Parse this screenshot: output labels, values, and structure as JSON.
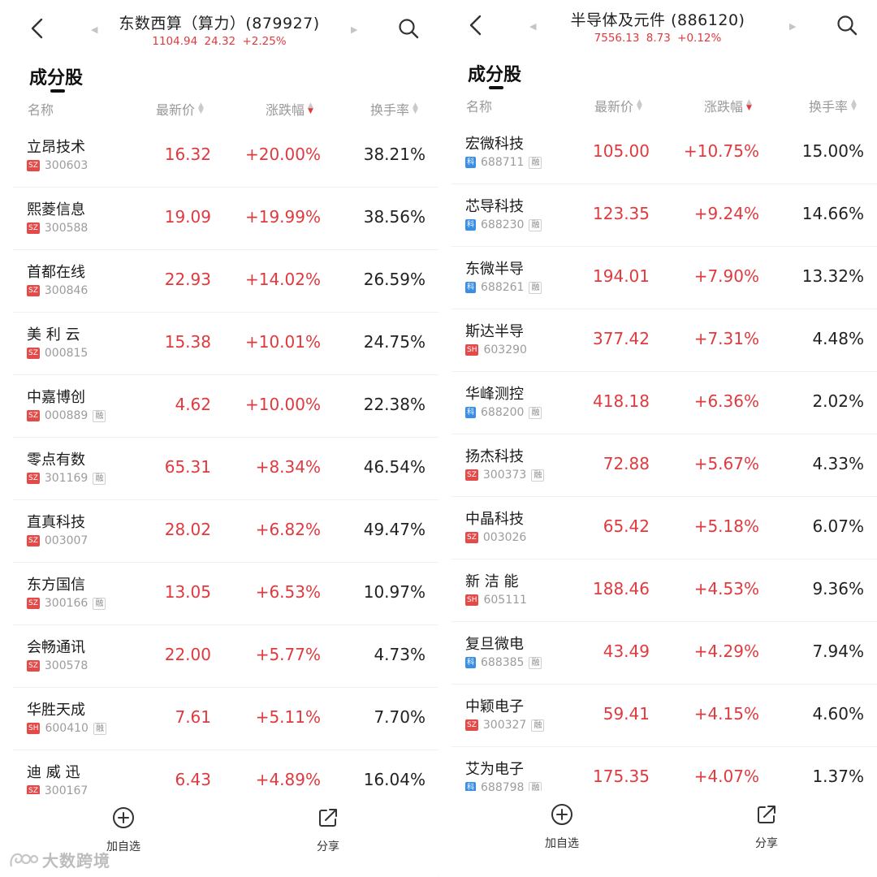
{
  "panels": [
    {
      "title": "东数西算（算力）(879927)",
      "quote": {
        "price": "1104.94",
        "change": "24.32",
        "pct": "+2.25%"
      },
      "section": "成分股",
      "headers": {
        "name": "名称",
        "price": "最新价",
        "change": "涨跌幅",
        "turnover": "换手率"
      },
      "rows": [
        {
          "name": "立昂技术",
          "market": "SZ",
          "code": "300603",
          "rong": "",
          "price": "16.32",
          "change": "+20.00%",
          "turnover": "38.21%"
        },
        {
          "name": "熙菱信息",
          "market": "SZ",
          "code": "300588",
          "rong": "",
          "price": "19.09",
          "change": "+19.99%",
          "turnover": "38.56%"
        },
        {
          "name": "首都在线",
          "market": "SZ",
          "code": "300846",
          "rong": "",
          "price": "22.93",
          "change": "+14.02%",
          "turnover": "26.59%"
        },
        {
          "name": "美 利 云",
          "market": "SZ",
          "code": "000815",
          "rong": "",
          "price": "15.38",
          "change": "+10.01%",
          "turnover": "24.75%"
        },
        {
          "name": "中嘉博创",
          "market": "SZ",
          "code": "000889",
          "rong": "融",
          "price": "4.62",
          "change": "+10.00%",
          "turnover": "22.38%"
        },
        {
          "name": "零点有数",
          "market": "SZ",
          "code": "301169",
          "rong": "融",
          "price": "65.31",
          "change": "+8.34%",
          "turnover": "46.54%"
        },
        {
          "name": "直真科技",
          "market": "SZ",
          "code": "003007",
          "rong": "",
          "price": "28.02",
          "change": "+6.82%",
          "turnover": "49.47%"
        },
        {
          "name": "东方国信",
          "market": "SZ",
          "code": "300166",
          "rong": "融",
          "price": "13.05",
          "change": "+6.53%",
          "turnover": "10.97%"
        },
        {
          "name": "会畅通讯",
          "market": "SZ",
          "code": "300578",
          "rong": "",
          "price": "22.00",
          "change": "+5.77%",
          "turnover": "4.73%"
        },
        {
          "name": "华胜天成",
          "market": "SH",
          "code": "600410",
          "rong": "融",
          "price": "7.61",
          "change": "+5.11%",
          "turnover": "7.70%"
        },
        {
          "name": "迪 威 迅",
          "market": "SZ",
          "code": "300167",
          "rong": "",
          "price": "6.43",
          "change": "+4.89%",
          "turnover": "16.04%"
        }
      ],
      "actions": {
        "add": "加自选",
        "share": "分享"
      }
    },
    {
      "title": "半导体及元件 (886120)",
      "quote": {
        "price": "7556.13",
        "change": "8.73",
        "pct": "+0.12%"
      },
      "section": "成分股",
      "headers": {
        "name": "名称",
        "price": "最新价",
        "change": "涨跌幅",
        "turnover": "换手率"
      },
      "rows": [
        {
          "name": "宏微科技",
          "market": "KE",
          "code": "688711",
          "rong": "融",
          "price": "105.00",
          "change": "+10.75%",
          "turnover": "15.00%"
        },
        {
          "name": "芯导科技",
          "market": "KE",
          "code": "688230",
          "rong": "融",
          "price": "123.35",
          "change": "+9.24%",
          "turnover": "14.66%"
        },
        {
          "name": "东微半导",
          "market": "KE",
          "code": "688261",
          "rong": "融",
          "price": "194.01",
          "change": "+7.90%",
          "turnover": "13.32%"
        },
        {
          "name": "斯达半导",
          "market": "SH",
          "code": "603290",
          "rong": "",
          "price": "377.42",
          "change": "+7.31%",
          "turnover": "4.48%"
        },
        {
          "name": "华峰测控",
          "market": "KE",
          "code": "688200",
          "rong": "融",
          "price": "418.18",
          "change": "+6.36%",
          "turnover": "2.02%"
        },
        {
          "name": "扬杰科技",
          "market": "SZ",
          "code": "300373",
          "rong": "融",
          "price": "72.88",
          "change": "+5.67%",
          "turnover": "4.33%"
        },
        {
          "name": "中晶科技",
          "market": "SZ",
          "code": "003026",
          "rong": "",
          "price": "65.42",
          "change": "+5.18%",
          "turnover": "6.07%"
        },
        {
          "name": "新 洁 能",
          "market": "SH",
          "code": "605111",
          "rong": "",
          "price": "188.46",
          "change": "+4.53%",
          "turnover": "9.36%"
        },
        {
          "name": "复旦微电",
          "market": "KE",
          "code": "688385",
          "rong": "融",
          "price": "43.49",
          "change": "+4.29%",
          "turnover": "7.94%"
        },
        {
          "name": "中颖电子",
          "market": "SZ",
          "code": "300327",
          "rong": "融",
          "price": "59.41",
          "change": "+4.15%",
          "turnover": "4.60%"
        },
        {
          "name": "艾为电子",
          "market": "KE",
          "code": "688798",
          "rong": "融",
          "price": "175.35",
          "change": "+4.07%",
          "turnover": "1.37%"
        }
      ],
      "actions": {
        "add": "加自选",
        "share": "分享"
      }
    }
  ],
  "market_badge_text": {
    "SZ": "SZ",
    "SH": "SH",
    "KE": "科"
  },
  "watermark": "大数跨境",
  "colors": {
    "up": "#e0393e",
    "sz_badge": "#e34a48",
    "ke_badge": "#3a8ee6",
    "text": "#222222",
    "muted": "#9a9a9a"
  },
  "icons": {
    "back": "chevron-left-icon",
    "search": "search-icon",
    "add": "plus-circle-icon",
    "share": "share-icon"
  }
}
